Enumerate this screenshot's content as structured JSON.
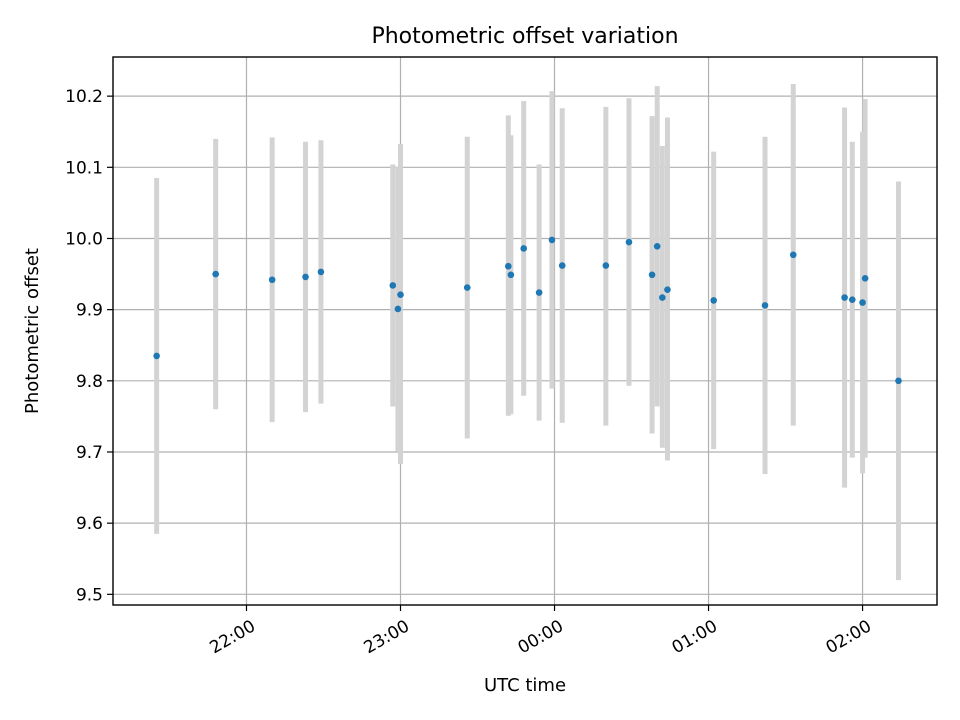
{
  "chart_data": {
    "type": "scatter",
    "title": "Photometric offset variation",
    "xlabel": "UTC time",
    "ylabel": "Photometric offset",
    "grid": true,
    "x_axis": {
      "kind": "time",
      "range": [
        "21:08",
        "02:29"
      ],
      "ticks": [
        "22:00",
        "23:00",
        "00:00",
        "01:00",
        "02:00"
      ]
    },
    "y_axis": {
      "range": [
        9.485,
        10.255
      ],
      "ticks": [
        "9.5",
        "9.6",
        "9.7",
        "9.8",
        "9.9",
        "10.0",
        "10.1",
        "10.2"
      ]
    },
    "colors": {
      "point": "#1f77b4",
      "errorbar": "#d3d3d3"
    },
    "points": [
      {
        "time": "21:25",
        "y": 9.835,
        "low": 9.585,
        "high": 10.085
      },
      {
        "time": "21:48",
        "y": 9.95,
        "low": 9.76,
        "high": 10.14
      },
      {
        "time": "22:10",
        "y": 9.942,
        "low": 9.742,
        "high": 10.142
      },
      {
        "time": "22:23",
        "y": 9.946,
        "low": 9.756,
        "high": 10.136
      },
      {
        "time": "22:29",
        "y": 9.953,
        "low": 9.768,
        "high": 10.138
      },
      {
        "time": "22:57",
        "y": 9.934,
        "low": 9.764,
        "high": 10.104
      },
      {
        "time": "22:59",
        "y": 9.901,
        "low": 9.701,
        "high": 10.101
      },
      {
        "time": "23:00",
        "y": 9.921,
        "low": 9.683,
        "high": 10.133
      },
      {
        "time": "23:26",
        "y": 9.931,
        "low": 9.719,
        "high": 10.143
      },
      {
        "time": "23:42",
        "y": 9.961,
        "low": 9.751,
        "high": 10.173
      },
      {
        "time": "23:43",
        "y": 9.949,
        "low": 9.753,
        "high": 10.145
      },
      {
        "time": "23:48",
        "y": 9.986,
        "low": 9.779,
        "high": 10.193
      },
      {
        "time": "23:54",
        "y": 9.924,
        "low": 9.744,
        "high": 10.104
      },
      {
        "time": "23:59",
        "y": 9.998,
        "low": 9.789,
        "high": 10.207
      },
      {
        "time": "00:03",
        "y": 9.962,
        "low": 9.741,
        "high": 10.183
      },
      {
        "time": "00:20",
        "y": 9.962,
        "low": 9.737,
        "high": 10.185
      },
      {
        "time": "00:29",
        "y": 9.995,
        "low": 9.793,
        "high": 10.197
      },
      {
        "time": "00:38",
        "y": 9.949,
        "low": 9.726,
        "high": 10.172
      },
      {
        "time": "00:40",
        "y": 9.989,
        "low": 9.764,
        "high": 10.214
      },
      {
        "time": "00:42",
        "y": 9.917,
        "low": 9.706,
        "high": 10.13
      },
      {
        "time": "00:44",
        "y": 9.928,
        "low": 9.688,
        "high": 10.17
      },
      {
        "time": "01:02",
        "y": 9.913,
        "low": 9.704,
        "high": 10.122
      },
      {
        "time": "01:22",
        "y": 9.906,
        "low": 9.669,
        "high": 10.143
      },
      {
        "time": "01:33",
        "y": 9.977,
        "low": 9.737,
        "high": 10.217
      },
      {
        "time": "01:53",
        "y": 9.917,
        "low": 9.65,
        "high": 10.184
      },
      {
        "time": "01:56",
        "y": 9.914,
        "low": 9.692,
        "high": 10.136
      },
      {
        "time": "02:00",
        "y": 9.91,
        "low": 9.67,
        "high": 10.15
      },
      {
        "time": "02:01",
        "y": 9.944,
        "low": 9.692,
        "high": 10.196
      },
      {
        "time": "02:14",
        "y": 9.8,
        "low": 9.52,
        "high": 10.08
      }
    ]
  }
}
